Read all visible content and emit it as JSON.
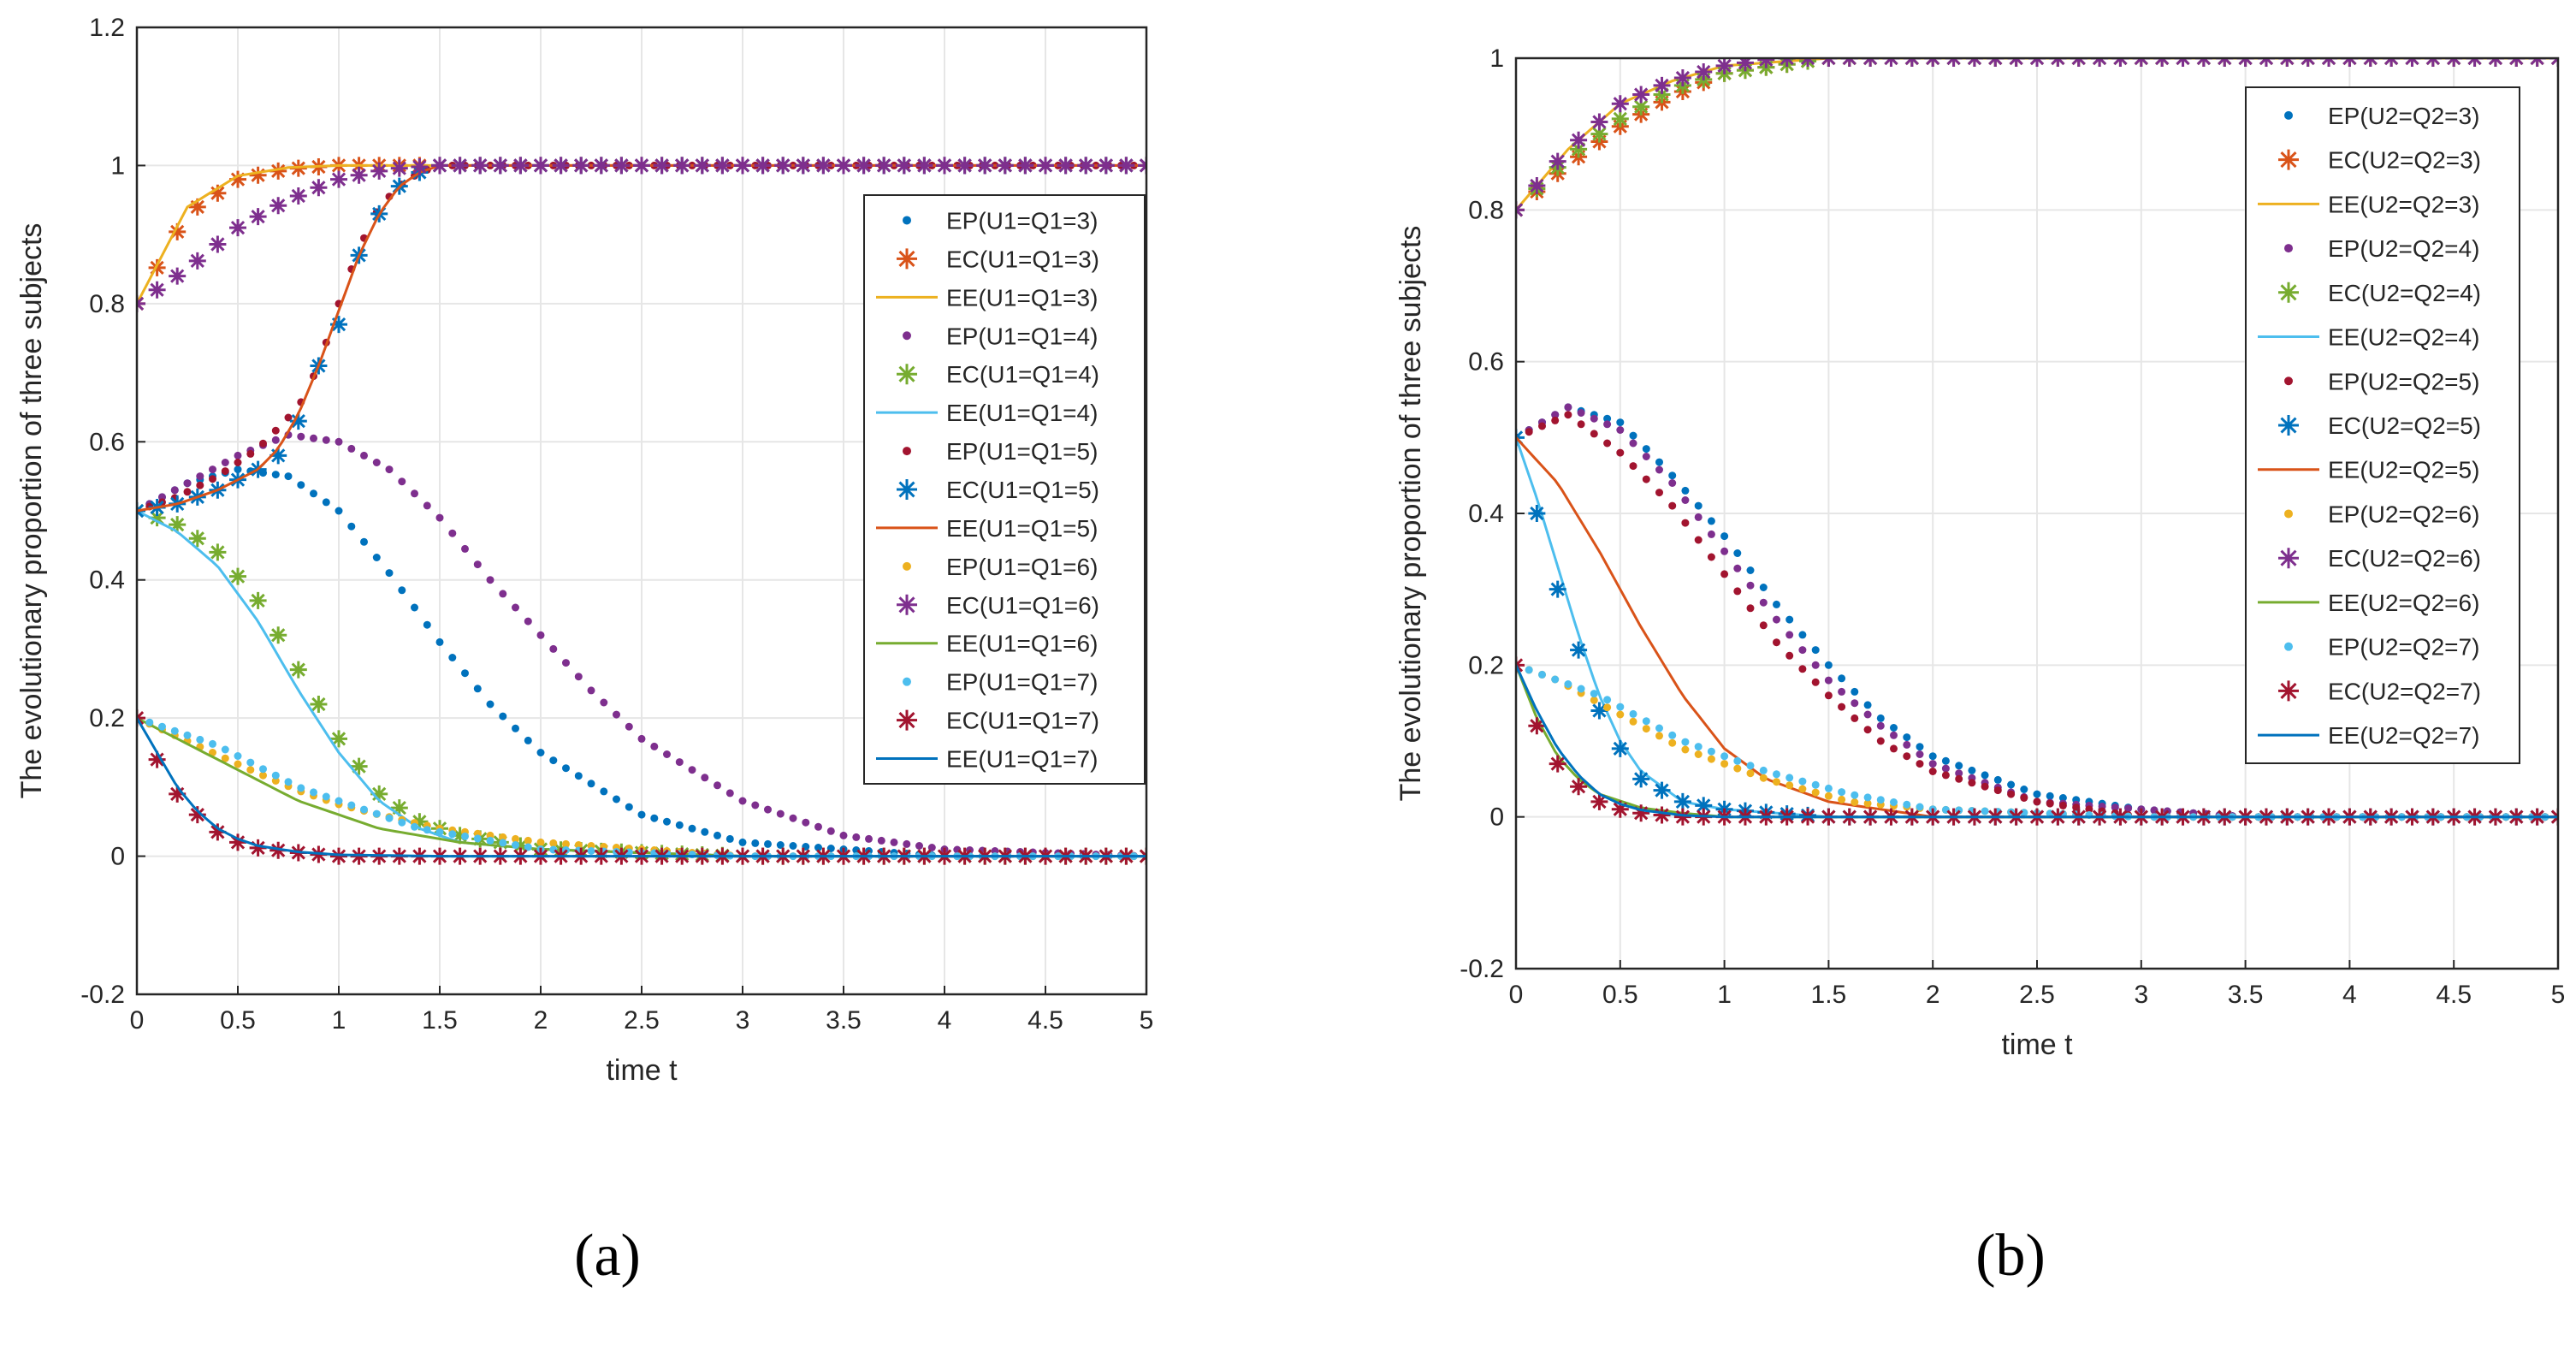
{
  "chart_data": [
    {
      "type": "line",
      "panel_label": "(a)",
      "xlabel": "time t",
      "ylabel": "The evolutionary proportion of three subjects",
      "xlim": [
        0,
        5
      ],
      "ylim": [
        -0.2,
        1.2
      ],
      "xticks": [
        "0",
        "0.5",
        "1",
        "1.5",
        "2",
        "2.5",
        "3",
        "3.5",
        "4",
        "4.5",
        "5"
      ],
      "yticks": [
        "-0.2",
        "0",
        "0.2",
        "0.4",
        "0.6",
        "0.8",
        "1",
        "1.2"
      ],
      "grid": true,
      "legend_position": "right",
      "series": [
        {
          "name": "EP(U1=Q1=3)",
          "style": "dot",
          "color": "#0072BD",
          "x": [
            0,
            0.25,
            0.5,
            0.75,
            1,
            1.25,
            1.5,
            1.75,
            2,
            2.5,
            3,
            3.5,
            4,
            5
          ],
          "y": [
            0.5,
            0.54,
            0.56,
            0.55,
            0.5,
            0.41,
            0.31,
            0.22,
            0.15,
            0.06,
            0.02,
            0.01,
            0,
            0
          ]
        },
        {
          "name": "EC(U1=Q1=3)",
          "style": "star",
          "color": "#D95319",
          "x": [
            0,
            0.25,
            0.5,
            0.75,
            1,
            1.5,
            2,
            3,
            4,
            5
          ],
          "y": [
            0.8,
            0.93,
            0.98,
            0.995,
            1,
            1,
            1,
            1,
            1,
            1
          ]
        },
        {
          "name": "EE(U1=Q1=3)",
          "style": "line",
          "color": "#EDB120",
          "x": [
            0,
            0.25,
            0.5,
            0.75,
            1,
            1.5,
            2,
            3,
            5
          ],
          "y": [
            0.8,
            0.94,
            0.985,
            0.997,
            1,
            1,
            1,
            1,
            1
          ]
        },
        {
          "name": "EP(U1=Q1=4)",
          "style": "dot",
          "color": "#7E2F8E",
          "x": [
            0,
            0.25,
            0.5,
            0.75,
            1,
            1.25,
            1.5,
            1.75,
            2,
            2.25,
            2.5,
            3,
            3.5,
            4,
            5
          ],
          "y": [
            0.5,
            0.54,
            0.58,
            0.61,
            0.6,
            0.56,
            0.49,
            0.4,
            0.32,
            0.24,
            0.17,
            0.08,
            0.03,
            0.01,
            0
          ]
        },
        {
          "name": "EC(U1=Q1=4)",
          "style": "star",
          "color": "#77AC30",
          "x": [
            0,
            0.2,
            0.4,
            0.6,
            0.8,
            1,
            1.2,
            1.4,
            1.6,
            2,
            3,
            5
          ],
          "y": [
            0.5,
            0.48,
            0.44,
            0.37,
            0.27,
            0.17,
            0.09,
            0.05,
            0.03,
            0.01,
            0,
            0
          ]
        },
        {
          "name": "EE(U1=Q1=4)",
          "style": "line",
          "color": "#4DBEEE",
          "x": [
            0,
            0.2,
            0.4,
            0.6,
            0.8,
            1,
            1.2,
            1.4,
            1.6,
            2,
            3,
            5
          ],
          "y": [
            0.5,
            0.47,
            0.42,
            0.34,
            0.24,
            0.15,
            0.08,
            0.04,
            0.02,
            0.01,
            0,
            0
          ]
        },
        {
          "name": "EP(U1=Q1=5)",
          "style": "dot",
          "color": "#A2142F",
          "x": [
            0,
            0.2,
            0.4,
            0.6,
            0.8,
            0.9,
            1,
            1.1,
            1.2,
            1.3,
            1.4,
            1.5,
            2,
            3,
            5
          ],
          "y": [
            0.5,
            0.52,
            0.55,
            0.59,
            0.65,
            0.71,
            0.8,
            0.88,
            0.94,
            0.97,
            0.99,
            1,
            1,
            1,
            1
          ]
        },
        {
          "name": "EC(U1=Q1=5)",
          "style": "star",
          "color": "#0072BD",
          "x": [
            0,
            0.2,
            0.4,
            0.6,
            0.7,
            0.8,
            0.9,
            1,
            1.1,
            1.2,
            1.3,
            1.4,
            1.5,
            2,
            3,
            5
          ],
          "y": [
            0.5,
            0.51,
            0.53,
            0.56,
            0.58,
            0.63,
            0.71,
            0.77,
            0.87,
            0.93,
            0.97,
            0.99,
            1,
            1,
            1,
            1
          ]
        },
        {
          "name": "EE(U1=Q1=5)",
          "style": "line",
          "color": "#D95319",
          "x": [
            0,
            0.2,
            0.4,
            0.6,
            0.7,
            0.8,
            0.9,
            1,
            1.1,
            1.2,
            1.3,
            1.4,
            1.5,
            2,
            5
          ],
          "y": [
            0.5,
            0.51,
            0.53,
            0.56,
            0.59,
            0.64,
            0.71,
            0.79,
            0.87,
            0.93,
            0.97,
            0.99,
            1,
            1,
            1
          ]
        },
        {
          "name": "EP(U1=Q1=6)",
          "style": "dot",
          "color": "#EDB120",
          "x": [
            0,
            0.15,
            0.3,
            0.45,
            0.6,
            0.8,
            1,
            1.2,
            1.5,
            2,
            3,
            5
          ],
          "y": [
            0.2,
            0.18,
            0.16,
            0.14,
            0.12,
            0.095,
            0.075,
            0.06,
            0.04,
            0.02,
            0,
            0
          ]
        },
        {
          "name": "EC(U1=Q1=6)",
          "style": "star",
          "color": "#7E2F8E",
          "x": [
            0,
            0.25,
            0.5,
            0.75,
            1,
            1.25,
            1.5,
            2,
            3,
            5
          ],
          "y": [
            0.8,
            0.85,
            0.91,
            0.95,
            0.98,
            0.995,
            1,
            1,
            1,
            1
          ]
        },
        {
          "name": "EE(U1=Q1=6)",
          "style": "line",
          "color": "#77AC30",
          "x": [
            0,
            0.2,
            0.4,
            0.6,
            0.8,
            1,
            1.2,
            1.4,
            1.6,
            2,
            3,
            5
          ],
          "y": [
            0.2,
            0.17,
            0.14,
            0.11,
            0.08,
            0.06,
            0.04,
            0.03,
            0.02,
            0.01,
            0,
            0
          ]
        },
        {
          "name": "EP(U1=Q1=7)",
          "style": "dot",
          "color": "#4DBEEE",
          "x": [
            0,
            0.2,
            0.4,
            0.6,
            0.8,
            1,
            1.2,
            1.4,
            1.6,
            2,
            3,
            5
          ],
          "y": [
            0.2,
            0.18,
            0.16,
            0.13,
            0.1,
            0.08,
            0.06,
            0.04,
            0.03,
            0.01,
            0,
            0
          ]
        },
        {
          "name": "EC(U1=Q1=7)",
          "style": "star",
          "color": "#A2142F",
          "x": [
            0,
            0.1,
            0.2,
            0.3,
            0.4,
            0.5,
            0.6,
            0.8,
            1,
            1.5,
            2,
            3,
            5
          ],
          "y": [
            0.2,
            0.14,
            0.09,
            0.06,
            0.035,
            0.02,
            0.012,
            0.005,
            0,
            0,
            0,
            0,
            0
          ]
        },
        {
          "name": "EE(U1=Q1=7)",
          "style": "line",
          "color": "#0072BD",
          "x": [
            0,
            0.1,
            0.2,
            0.3,
            0.4,
            0.5,
            0.6,
            0.8,
            1,
            1.5,
            2,
            3,
            5
          ],
          "y": [
            0.2,
            0.15,
            0.1,
            0.065,
            0.04,
            0.025,
            0.015,
            0.006,
            0.002,
            0,
            0,
            0,
            0
          ]
        }
      ]
    },
    {
      "type": "line",
      "panel_label": "(b)",
      "xlabel": "time t",
      "ylabel": "The evolutionary proportion of three subjects",
      "xlim": [
        0,
        5
      ],
      "ylim": [
        -0.2,
        1
      ],
      "xticks": [
        "0",
        "0.5",
        "1",
        "1.5",
        "2",
        "2.5",
        "3",
        "3.5",
        "4",
        "4.5",
        "5"
      ],
      "yticks": [
        "-0.2",
        "0",
        "0.2",
        "0.4",
        "0.6",
        "0.8",
        "1"
      ],
      "grid": true,
      "legend_position": "right",
      "series": [
        {
          "name": "EP(U2=Q2=3)",
          "style": "dot",
          "color": "#0072BD",
          "x": [
            0,
            0.25,
            0.5,
            0.75,
            1,
            1.25,
            1.5,
            1.75,
            2,
            2.5,
            3,
            3.5,
            4,
            5
          ],
          "y": [
            0.5,
            0.54,
            0.52,
            0.45,
            0.37,
            0.28,
            0.2,
            0.13,
            0.08,
            0.03,
            0.01,
            0,
            0,
            0
          ]
        },
        {
          "name": "EC(U2=Q2=3)",
          "style": "star",
          "color": "#D95319",
          "x": [
            0,
            0.25,
            0.5,
            0.75,
            1,
            1.25,
            1.5,
            2,
            3,
            5
          ],
          "y": [
            0.8,
            0.86,
            0.91,
            0.95,
            0.98,
            0.99,
            1,
            1,
            1,
            1
          ]
        },
        {
          "name": "EE(U2=Q2=3)",
          "style": "line",
          "color": "#EDB120",
          "x": [
            0,
            0.25,
            0.5,
            0.75,
            1,
            1.5,
            2,
            5
          ],
          "y": [
            0.8,
            0.88,
            0.94,
            0.97,
            0.99,
            1,
            1,
            1
          ]
        },
        {
          "name": "EP(U2=Q2=4)",
          "style": "dot",
          "color": "#7E2F8E",
          "x": [
            0,
            0.25,
            0.5,
            0.75,
            1,
            1.25,
            1.5,
            1.75,
            2,
            2.5,
            3,
            3.5,
            5
          ],
          "y": [
            0.5,
            0.54,
            0.51,
            0.44,
            0.35,
            0.26,
            0.18,
            0.12,
            0.07,
            0.02,
            0.01,
            0,
            0
          ]
        },
        {
          "name": "EC(U2=Q2=4)",
          "style": "star",
          "color": "#77AC30",
          "x": [
            0,
            0.25,
            0.5,
            0.75,
            1,
            1.25,
            1.5,
            2,
            3,
            5
          ],
          "y": [
            0.8,
            0.87,
            0.92,
            0.96,
            0.98,
            0.99,
            1,
            1,
            1,
            1
          ]
        },
        {
          "name": "EE(U2=Q2=4)",
          "style": "line",
          "color": "#4DBEEE",
          "x": [
            0,
            0.1,
            0.2,
            0.3,
            0.4,
            0.5,
            0.6,
            0.8,
            1,
            1.5,
            5
          ],
          "y": [
            0.5,
            0.42,
            0.33,
            0.24,
            0.16,
            0.1,
            0.06,
            0.02,
            0.01,
            0,
            0
          ]
        },
        {
          "name": "EP(U2=Q2=5)",
          "style": "dot",
          "color": "#A2142F",
          "x": [
            0,
            0.25,
            0.5,
            0.75,
            1,
            1.25,
            1.5,
            1.75,
            2,
            2.5,
            3,
            5
          ],
          "y": [
            0.5,
            0.53,
            0.48,
            0.41,
            0.32,
            0.23,
            0.16,
            0.1,
            0.06,
            0.02,
            0,
            0
          ]
        },
        {
          "name": "EC(U2=Q2=5)",
          "style": "star",
          "color": "#0072BD",
          "x": [
            0,
            0.1,
            0.2,
            0.3,
            0.4,
            0.5,
            0.6,
            0.8,
            1,
            1.5,
            5
          ],
          "y": [
            0.5,
            0.4,
            0.3,
            0.22,
            0.14,
            0.09,
            0.05,
            0.02,
            0.01,
            0,
            0
          ]
        },
        {
          "name": "EE(U2=Q2=5)",
          "style": "line",
          "color": "#D95319",
          "x": [
            0,
            0.2,
            0.4,
            0.6,
            0.8,
            1,
            1.2,
            1.5,
            2,
            5
          ],
          "y": [
            0.5,
            0.44,
            0.35,
            0.25,
            0.16,
            0.09,
            0.05,
            0.02,
            0,
            0
          ]
        },
        {
          "name": "EP(U2=Q2=6)",
          "style": "dot",
          "color": "#EDB120",
          "x": [
            0,
            0.2,
            0.4,
            0.6,
            0.8,
            1,
            1.2,
            1.4,
            1.6,
            2,
            3,
            5
          ],
          "y": [
            0.2,
            0.18,
            0.15,
            0.12,
            0.09,
            0.07,
            0.05,
            0.035,
            0.02,
            0.01,
            0,
            0
          ]
        },
        {
          "name": "EC(U2=Q2=6)",
          "style": "star",
          "color": "#7E2F8E",
          "x": [
            0,
            0.25,
            0.5,
            0.75,
            1,
            1.25,
            1.5,
            2,
            3,
            5
          ],
          "y": [
            0.8,
            0.88,
            0.94,
            0.97,
            0.99,
            1,
            1,
            1,
            1,
            1
          ]
        },
        {
          "name": "EE(U2=Q2=6)",
          "style": "line",
          "color": "#77AC30",
          "x": [
            0,
            0.1,
            0.2,
            0.3,
            0.4,
            0.6,
            0.8,
            1,
            1.5,
            5
          ],
          "y": [
            0.2,
            0.13,
            0.08,
            0.05,
            0.03,
            0.012,
            0.005,
            0,
            0,
            0
          ]
        },
        {
          "name": "EP(U2=Q2=7)",
          "style": "dot",
          "color": "#4DBEEE",
          "x": [
            0,
            0.2,
            0.4,
            0.6,
            0.8,
            1,
            1.2,
            1.4,
            1.6,
            2,
            3,
            5
          ],
          "y": [
            0.2,
            0.18,
            0.16,
            0.13,
            0.1,
            0.08,
            0.06,
            0.045,
            0.03,
            0.01,
            0,
            0
          ]
        },
        {
          "name": "EC(U2=Q2=7)",
          "style": "star",
          "color": "#A2142F",
          "x": [
            0,
            0.1,
            0.2,
            0.3,
            0.4,
            0.5,
            0.6,
            0.8,
            1,
            5
          ],
          "y": [
            0.2,
            0.12,
            0.07,
            0.04,
            0.02,
            0.01,
            0.005,
            0,
            0,
            0
          ]
        },
        {
          "name": "EE(U2=Q2=7)",
          "style": "line",
          "color": "#0072BD",
          "x": [
            0,
            0.1,
            0.2,
            0.3,
            0.4,
            0.5,
            0.6,
            0.8,
            1,
            5
          ],
          "y": [
            0.2,
            0.14,
            0.09,
            0.055,
            0.03,
            0.017,
            0.009,
            0.002,
            0,
            0
          ]
        }
      ]
    }
  ]
}
